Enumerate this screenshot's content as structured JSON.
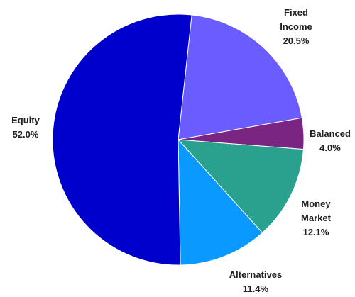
{
  "chart_data": {
    "type": "pie",
    "title": "",
    "slices": [
      {
        "label": [
          "Fixed",
          "Income"
        ],
        "value": 20.5,
        "value_label": "20.5%",
        "color": "#6B5CFF"
      },
      {
        "label": [
          "Balanced"
        ],
        "value": 4.0,
        "value_label": "4.0%",
        "color": "#7A2582"
      },
      {
        "label": [
          "Money",
          "Market"
        ],
        "value": 12.1,
        "value_label": "12.1%",
        "color": "#2AA18E"
      },
      {
        "label": [
          "Alternatives"
        ],
        "value": 11.4,
        "value_label": "11.4%",
        "color": "#0A99FF"
      },
      {
        "label": [
          "Equity"
        ],
        "value": 52.0,
        "value_label": "52.0%",
        "color": "#0000CC"
      }
    ],
    "legend": "none"
  }
}
